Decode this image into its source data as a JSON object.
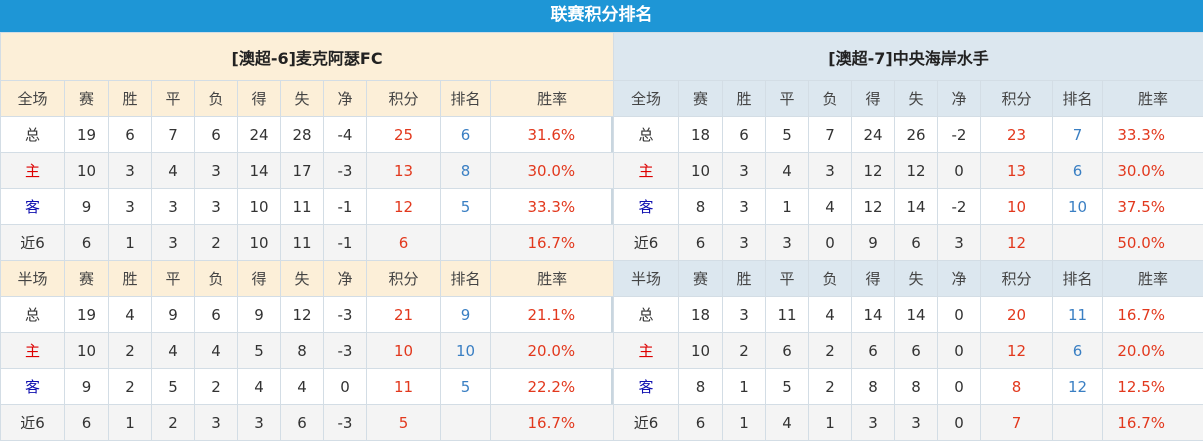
{
  "title": "联赛积分排名",
  "colors": {
    "header_bar": "#1e96d6",
    "points": "#e2381d",
    "rank": "#3a7fc3",
    "home_label": "#dd0000",
    "away_label": "#1010b0"
  },
  "columns_full": [
    "全场",
    "赛",
    "胜",
    "平",
    "负",
    "得",
    "失",
    "净",
    "积分",
    "排名",
    "胜率"
  ],
  "columns_half": [
    "半场",
    "赛",
    "胜",
    "平",
    "负",
    "得",
    "失",
    "净",
    "积分",
    "排名",
    "胜率"
  ],
  "teams": [
    {
      "name": "[澳超-6]麦克阿瑟FC",
      "full": [
        [
          "总",
          "19",
          "6",
          "7",
          "6",
          "24",
          "28",
          "-4",
          "25",
          "6",
          "31.6%"
        ],
        [
          "主",
          "10",
          "3",
          "4",
          "3",
          "14",
          "17",
          "-3",
          "13",
          "8",
          "30.0%"
        ],
        [
          "客",
          "9",
          "3",
          "3",
          "3",
          "10",
          "11",
          "-1",
          "12",
          "5",
          "33.3%"
        ],
        [
          "近6",
          "6",
          "1",
          "3",
          "2",
          "10",
          "11",
          "-1",
          "6",
          "",
          "16.7%"
        ]
      ],
      "half": [
        [
          "总",
          "19",
          "4",
          "9",
          "6",
          "9",
          "12",
          "-3",
          "21",
          "9",
          "21.1%"
        ],
        [
          "主",
          "10",
          "2",
          "4",
          "4",
          "5",
          "8",
          "-3",
          "10",
          "10",
          "20.0%"
        ],
        [
          "客",
          "9",
          "2",
          "5",
          "2",
          "4",
          "4",
          "0",
          "11",
          "5",
          "22.2%"
        ],
        [
          "近6",
          "6",
          "1",
          "2",
          "3",
          "3",
          "6",
          "-3",
          "5",
          "",
          "16.7%"
        ]
      ]
    },
    {
      "name": "[澳超-7]中央海岸水手",
      "full": [
        [
          "总",
          "18",
          "6",
          "5",
          "7",
          "24",
          "26",
          "-2",
          "23",
          "7",
          "33.3%"
        ],
        [
          "主",
          "10",
          "3",
          "4",
          "3",
          "12",
          "12",
          "0",
          "13",
          "6",
          "30.0%"
        ],
        [
          "客",
          "8",
          "3",
          "1",
          "4",
          "12",
          "14",
          "-2",
          "10",
          "10",
          "37.5%"
        ],
        [
          "近6",
          "6",
          "3",
          "3",
          "0",
          "9",
          "6",
          "3",
          "12",
          "",
          "50.0%"
        ]
      ],
      "half": [
        [
          "总",
          "18",
          "3",
          "11",
          "4",
          "14",
          "14",
          "0",
          "20",
          "11",
          "16.7%"
        ],
        [
          "主",
          "10",
          "2",
          "6",
          "2",
          "6",
          "6",
          "0",
          "12",
          "6",
          "20.0%"
        ],
        [
          "客",
          "8",
          "1",
          "5",
          "2",
          "8",
          "8",
          "0",
          "8",
          "12",
          "12.5%"
        ],
        [
          "近6",
          "6",
          "1",
          "4",
          "1",
          "3",
          "3",
          "0",
          "7",
          "",
          "16.7%"
        ]
      ]
    }
  ]
}
